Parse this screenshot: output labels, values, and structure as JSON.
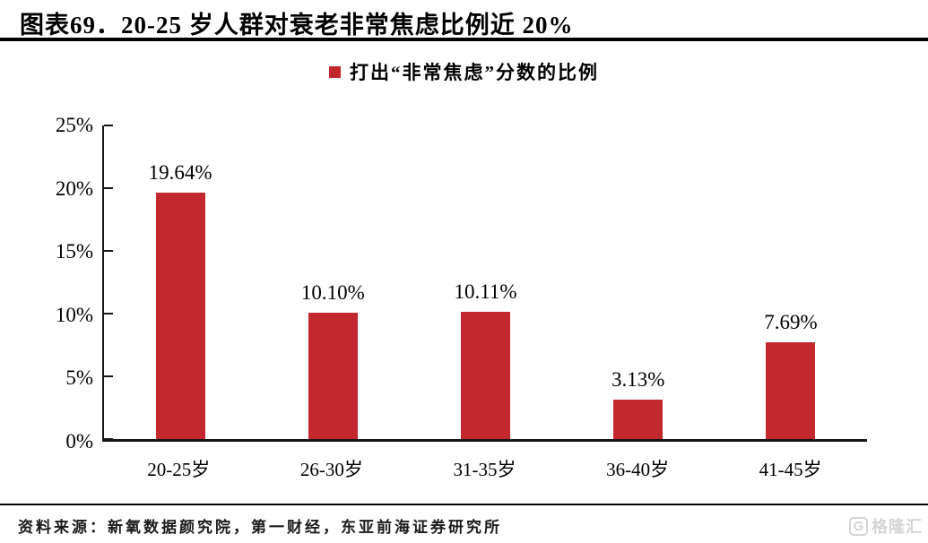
{
  "header": {
    "title": "图表69．20-25 岁人群对衰老非常焦虑比例近 20%"
  },
  "legend": {
    "label": "打出“非常焦虑”分数的比例",
    "marker_color": "#c3282f"
  },
  "chart_data": {
    "type": "bar",
    "title": "图表69．20-25 岁人群对衰老非常焦虑比例近 20%",
    "series_name": "打出“非常焦虑”分数的比例",
    "categories": [
      "20-25岁",
      "26-30岁",
      "31-35岁",
      "36-40岁",
      "41-45岁"
    ],
    "values": [
      19.64,
      10.1,
      10.11,
      3.13,
      7.69
    ],
    "value_labels": [
      "19.64%",
      "10.10%",
      "10.11%",
      "3.13%",
      "7.69%"
    ],
    "xlabel": "",
    "ylabel": "",
    "ylim": [
      0,
      25
    ],
    "ytick_step": 5,
    "ytick_labels": [
      "0%",
      "5%",
      "10%",
      "15%",
      "20%",
      "25%"
    ],
    "bar_color": "#c3282f",
    "grid": false,
    "legend_position": "top-center"
  },
  "footer": {
    "source": "资料来源：新氧数据颜究院，第一财经，东亚前海证券研究所",
    "logo_letter": "G",
    "logo_text": "格隆汇"
  }
}
